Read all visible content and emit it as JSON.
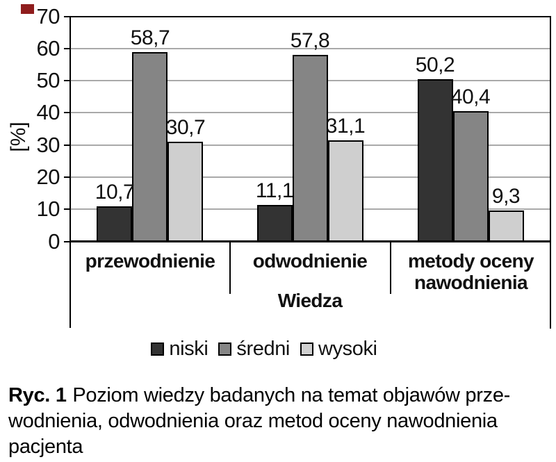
{
  "accent": {
    "marker_color": "#8f1d1d"
  },
  "chart_data": {
    "type": "bar",
    "categories": [
      "przewodnienie",
      "odwodnienie",
      "metody oceny nawodnienia"
    ],
    "series": [
      {
        "name": "niski",
        "color": "#333333",
        "values": [
          10.7,
          11.1,
          50.2
        ]
      },
      {
        "name": "średni",
        "color": "#858585",
        "values": [
          58.7,
          57.8,
          40.4
        ]
      },
      {
        "name": "wysoki",
        "color": "#cfcfcf",
        "values": [
          30.7,
          31.1,
          9.3
        ]
      }
    ],
    "value_labels": [
      [
        "10,7",
        "58,7",
        "30,7"
      ],
      [
        "11,1",
        "57,8",
        "31,1"
      ],
      [
        "50,2",
        "40,4",
        "9,3"
      ]
    ],
    "yticks": [
      "70",
      "60",
      "50",
      "40",
      "30",
      "20",
      "10",
      "0"
    ],
    "ylabel": "[%]",
    "xlabel": "Wiedza",
    "ylim": [
      0,
      70
    ],
    "ytick_step": 10,
    "grid": true,
    "legend_position": "bottom"
  },
  "labels": {
    "categories_display": [
      "przewodnienie",
      "odwodnienie",
      [
        "metody oceny",
        "nawodnienia"
      ]
    ]
  },
  "caption": {
    "prefix": "Ryc. 1",
    "line1_rest": "Poziom wiedzy badanych na temat objawów prze-",
    "line2": "wodnienia, odwodnienia oraz metod oceny nawodnienia",
    "line3": "pacjenta"
  }
}
